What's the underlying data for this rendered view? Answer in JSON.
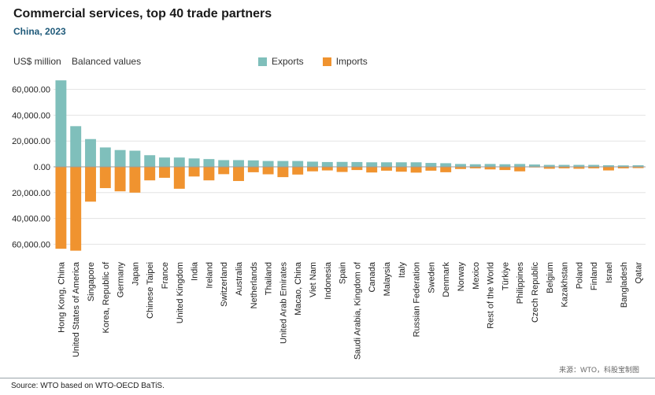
{
  "header": {
    "title": "Commercial services, top 40 trade partners",
    "subtitle": "China, 2023",
    "units_label": "US$ million",
    "mode_label": "Balanced values"
  },
  "legend": {
    "exports_label": "Exports",
    "imports_label": "Imports"
  },
  "footer": {
    "source": "Source: WTO based on WTO-OECD BaTiS.",
    "watermark": "来源：WTO，科股宝制图"
  },
  "colors": {
    "exports": "#7fbfbb",
    "imports": "#f0932f",
    "grid": "#e3e3e3"
  },
  "chart_data": {
    "type": "bar",
    "title": "Commercial services, top 40 trade partners",
    "subtitle": "China, 2023",
    "ylabel": "US$ million",
    "ylim": [
      -66000,
      70000
    ],
    "yticks": [
      60000,
      40000,
      20000,
      0,
      -20000,
      -40000,
      -60000
    ],
    "ytick_labels": [
      "60,000.00",
      "40,000.00",
      "20,000.00",
      "0.00",
      "20,000.00",
      "40,000.00",
      "60,000.00"
    ],
    "grid": true,
    "legend_position": "top",
    "categories": [
      "Hong Kong, China",
      "United States of America",
      "Singapore",
      "Korea, Republic of",
      "Germany",
      "Japan",
      "Chinese Taipei",
      "France",
      "United Kingdom",
      "India",
      "Ireland",
      "Switzerland",
      "Australia",
      "Netherlands",
      "Thailand",
      "United Arab Emirates",
      "Macao, China",
      "Viet Nam",
      "Indonesia",
      "Spain",
      "Saudi Arabia, Kingdom of",
      "Canada",
      "Malaysia",
      "Italy",
      "Russian Federation",
      "Sweden",
      "Denmark",
      "Norway",
      "Mexico",
      "Rest of the World",
      "Türkiye",
      "Philippines",
      "Czech Republic",
      "Belgium",
      "Kazakhstan",
      "Poland",
      "Finland",
      "Israel",
      "Bangladesh",
      "Qatar"
    ],
    "series": [
      {
        "name": "Exports",
        "values": [
          67000,
          31500,
          21500,
          15000,
          13000,
          12500,
          9000,
          7200,
          7200,
          6500,
          6000,
          5200,
          5200,
          5000,
          4500,
          4500,
          4500,
          4000,
          3700,
          3800,
          3700,
          3500,
          3500,
          3500,
          3500,
          3000,
          2800,
          2200,
          2000,
          2200,
          2000,
          2200,
          1800,
          1500,
          1500,
          1500,
          1500,
          1200,
          1100,
          1200
        ]
      },
      {
        "name": "Imports",
        "values": [
          -63500,
          -65000,
          -27000,
          -16500,
          -19000,
          -20000,
          -10500,
          -8500,
          -17000,
          -7500,
          -10500,
          -5700,
          -11000,
          -4200,
          -5800,
          -8000,
          -6000,
          -3500,
          -2800,
          -4000,
          -2500,
          -4400,
          -3000,
          -3800,
          -4500,
          -3000,
          -4200,
          -1700,
          -1200,
          -2000,
          -2500,
          -3500,
          -500,
          -1500,
          -1200,
          -1500,
          -1200,
          -2800,
          -1200,
          -1000
        ]
      }
    ]
  }
}
